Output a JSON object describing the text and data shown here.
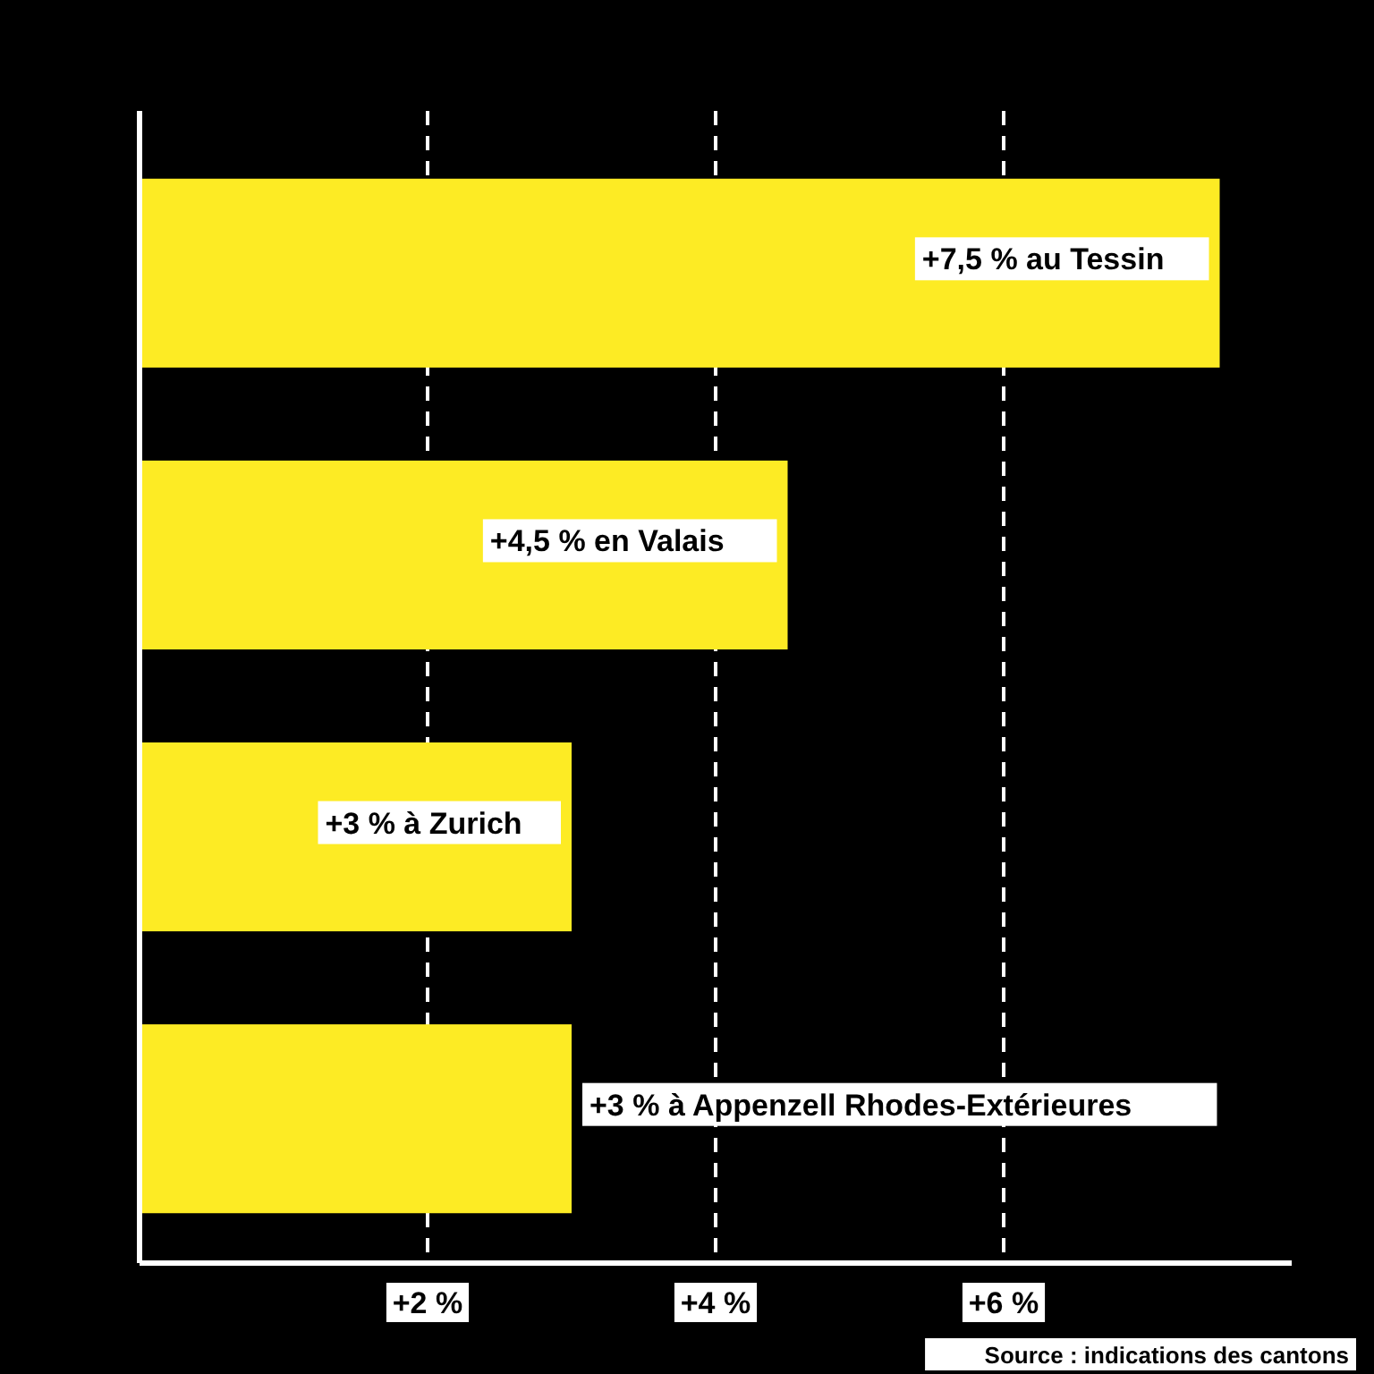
{
  "chart_data": {
    "type": "bar",
    "orientation": "horizontal",
    "categories": [
      null,
      null,
      null,
      null
    ],
    "values": [
      7.5,
      4.5,
      3,
      3
    ],
    "color": "#fdeb24",
    "value_labels": [
      "+7,5 % au Tessin",
      "+4,5 % en Valais",
      "+3 % à Zurich",
      "+3 %  à Appenzell Rhodes-Extérieures"
    ],
    "xlim": [
      0,
      8
    ],
    "xticks": [
      {
        "value": 2,
        "label": "+2 %"
      },
      {
        "value": 4,
        "label": "+4 %"
      },
      {
        "value": 6,
        "label": "+6 %"
      }
    ],
    "grid": "x",
    "line_style": "dashed",
    "annotations": [
      "Source : indications des cantons"
    ]
  }
}
